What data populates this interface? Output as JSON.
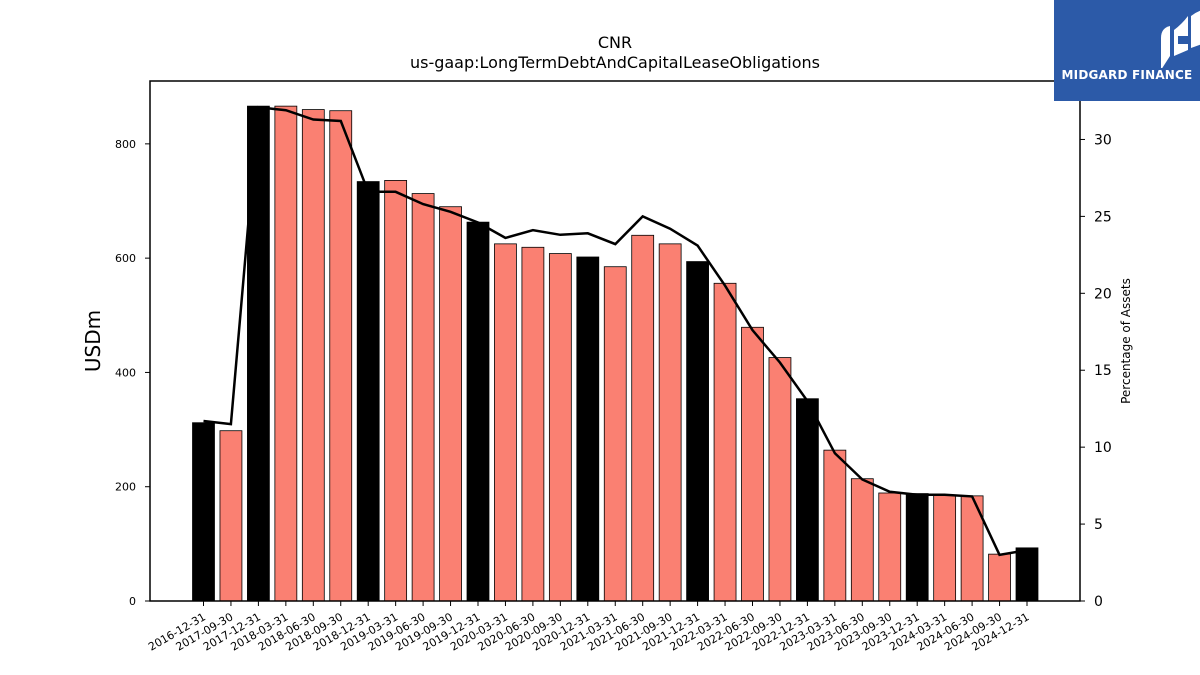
{
  "chart_data": {
    "type": "bar",
    "title": "CNR",
    "subtitle": "us-gaap:LongTermDebtAndCapitalLeaseObligations",
    "ylabel": "USDm",
    "y2label": "Percentage of Assets",
    "ylim": [
      0,
      910
    ],
    "y2lim": [
      0,
      33.8
    ],
    "yticks": [
      0,
      200,
      400,
      600,
      800
    ],
    "y2ticks": [
      0,
      5,
      10,
      15,
      20,
      25,
      30
    ],
    "categories": [
      "2016-12-31",
      "2017-09-30",
      "2017-12-31",
      "2018-03-31",
      "2018-06-30",
      "2018-09-30",
      "2018-12-31",
      "2019-03-31",
      "2019-06-30",
      "2019-09-30",
      "2019-12-31",
      "2020-03-31",
      "2020-06-30",
      "2020-09-30",
      "2020-12-31",
      "2021-03-31",
      "2021-06-30",
      "2021-09-30",
      "2021-12-31",
      "2022-03-31",
      "2022-06-30",
      "2022-09-30",
      "2022-12-31",
      "2023-03-31",
      "2023-06-30",
      "2023-09-30",
      "2023-12-31",
      "2024-03-31",
      "2024-06-30",
      "2024-09-30",
      "2024-12-31"
    ],
    "series": [
      {
        "values": [
          312,
          298,
          866,
          866,
          860,
          858,
          734,
          736,
          713,
          690,
          663,
          625,
          619,
          608,
          602,
          585,
          640,
          625,
          594,
          556,
          479,
          426,
          354,
          264,
          214,
          189,
          188,
          185,
          184,
          82,
          93
        ],
        "colors": [
          "#000000",
          "#fa8072",
          "#000000",
          "#fa8072",
          "#fa8072",
          "#fa8072",
          "#000000",
          "#fa8072",
          "#fa8072",
          "#fa8072",
          "#000000",
          "#fa8072",
          "#fa8072",
          "#fa8072",
          "#000000",
          "#fa8072",
          "#fa8072",
          "#fa8072",
          "#000000",
          "#fa8072",
          "#fa8072",
          "#fa8072",
          "#000000",
          "#fa8072",
          "#fa8072",
          "#fa8072",
          "#000000",
          "#fa8072",
          "#fa8072",
          "#fa8072",
          "#000000"
        ]
      },
      {
        "axis": "right",
        "type": "line",
        "color": "#000000",
        "values": [
          11.7,
          11.5,
          32.1,
          31.9,
          31.3,
          31.2,
          26.6,
          26.6,
          25.8,
          25.3,
          24.6,
          23.6,
          24.1,
          23.8,
          23.9,
          23.2,
          25.0,
          24.2,
          23.1,
          20.5,
          17.6,
          15.5,
          13.0,
          9.6,
          7.9,
          7.1,
          6.9,
          6.9,
          6.8,
          3.0,
          3.3
        ]
      }
    ],
    "grid": false
  },
  "logo": {
    "text": "MIDGARD FINANCE",
    "background": "#2c5aa8"
  }
}
